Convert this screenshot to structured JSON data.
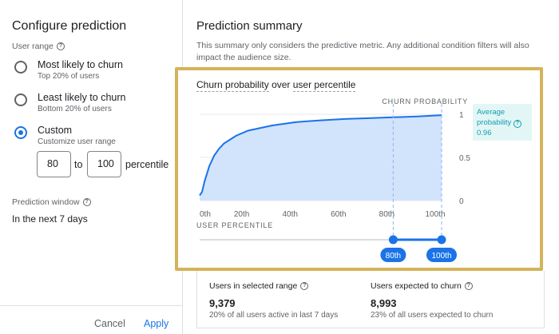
{
  "config": {
    "title": "Configure prediction",
    "user_range_label": "User range",
    "options": [
      {
        "title": "Most likely to churn",
        "subtitle": "Top 20% of users",
        "selected": false
      },
      {
        "title": "Least likely to churn",
        "subtitle": "Bottom 20% of users",
        "selected": false
      },
      {
        "title": "Custom",
        "subtitle": "Customize user range",
        "selected": true
      }
    ],
    "range_from": "80",
    "range_to": "100",
    "to_word": "to",
    "percentile_word": "percentile",
    "window_label": "Prediction window",
    "window_value": "In the next 7 days",
    "cancel": "Cancel",
    "apply": "Apply"
  },
  "summary": {
    "title": "Prediction summary",
    "description": "This summary only considers the predictive metric. Any additional condition filters will also impact the audience size.",
    "chart_title_left": "Churn probability",
    "chart_title_mid": "over",
    "chart_title_right": "user percentile",
    "average": {
      "line1": "Average",
      "line2": "probability",
      "value": "0.96"
    },
    "stats": [
      {
        "label": "Users in selected range",
        "value": "9,379",
        "sub": "20% of all users active in last 7 days"
      },
      {
        "label": "Users expected to churn",
        "value": "8,993",
        "sub": "23% of all users expected to churn"
      }
    ]
  },
  "chart_data": {
    "type": "area",
    "ylabel": "CHURN PROBABILITY",
    "xlabel": "USER PERCENTILE",
    "x": [
      0,
      1,
      2,
      4,
      6,
      8,
      10,
      15,
      20,
      30,
      40,
      50,
      60,
      70,
      80,
      90,
      100
    ],
    "y": [
      0.06,
      0.1,
      0.22,
      0.4,
      0.52,
      0.6,
      0.66,
      0.75,
      0.81,
      0.87,
      0.91,
      0.93,
      0.945,
      0.955,
      0.965,
      0.975,
      0.99
    ],
    "xlim": [
      0,
      100
    ],
    "ylim": [
      0,
      1
    ],
    "x_ticks": [
      {
        "value": 0,
        "label": "0th"
      },
      {
        "value": 20,
        "label": "20th"
      },
      {
        "value": 40,
        "label": "40th"
      },
      {
        "value": 60,
        "label": "60th"
      },
      {
        "value": 80,
        "label": "80th"
      },
      {
        "value": 100,
        "label": "100th"
      }
    ],
    "y_ticks": [
      {
        "value": 1,
        "label": "1"
      },
      {
        "value": 0.5,
        "label": "0.5"
      },
      {
        "value": 0,
        "label": "0"
      }
    ],
    "selection": {
      "from": 80,
      "to": 100,
      "from_label": "80th",
      "to_label": "100th"
    },
    "fill_color": "#d2e3fc",
    "line_color": "#1a73e8"
  }
}
